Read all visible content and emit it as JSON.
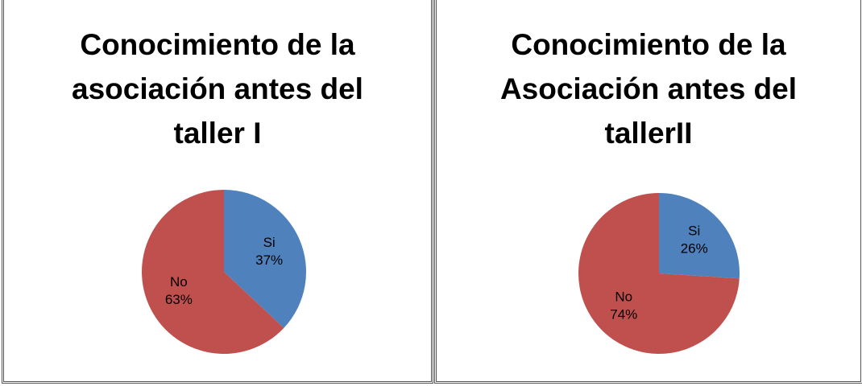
{
  "chart_data": [
    {
      "type": "pie",
      "title": "Conocimiento de la asociación antes del taller I",
      "categories": [
        "Si",
        "No"
      ],
      "values": [
        37,
        63
      ],
      "value_labels": [
        "37%",
        "63%"
      ],
      "colors": [
        "#4f81bd",
        "#c0504d"
      ]
    },
    {
      "type": "pie",
      "title": "Conocimiento de la Asociación antes del tallerII",
      "categories": [
        "Si",
        "No"
      ],
      "values": [
        26,
        74
      ],
      "value_labels": [
        "26%",
        "74%"
      ],
      "colors": [
        "#4f81bd",
        "#c0504d"
      ]
    }
  ]
}
